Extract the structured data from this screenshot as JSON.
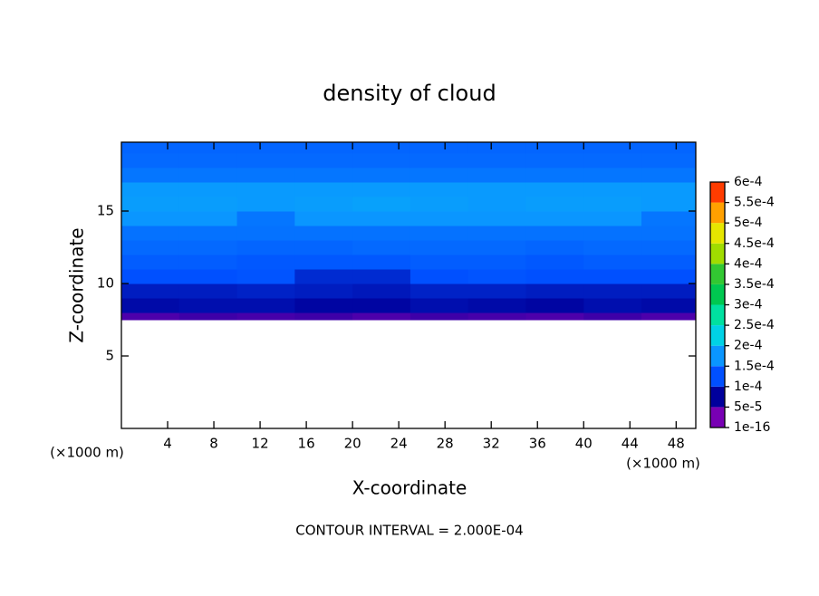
{
  "chart_data": {
    "type": "contour",
    "title": "density of cloud",
    "x_label": "X-coordinate",
    "y_label": "Z-coordinate",
    "x_unit": "(×1000 m)",
    "y_unit": "(×1000 m)",
    "note": "CONTOUR INTERVAL = 2.000E-04",
    "xlim": [
      0,
      49.7
    ],
    "ylim": [
      0,
      19.75
    ],
    "xticks": [
      4,
      8,
      12,
      16,
      20,
      24,
      28,
      32,
      36,
      40,
      44,
      48
    ],
    "yticks": [
      5,
      10,
      15
    ],
    "x_edges": [
      0,
      5,
      10,
      15,
      20,
      25,
      30,
      35,
      40,
      45,
      49.7
    ],
    "y_edges": [
      7.5,
      8,
      9,
      10,
      11,
      12,
      13,
      14,
      15,
      16,
      17,
      18,
      19,
      19.75
    ],
    "z": [
      [
        3e-05,
        4e-05,
        3.5e-05,
        4e-05,
        3e-05,
        4e-05,
        3.5e-05,
        3e-05,
        4e-05,
        3e-05
      ],
      [
        6e-05,
        6.5e-05,
        6.5e-05,
        5.5e-05,
        5.5e-05,
        6.5e-05,
        6e-05,
        5.5e-05,
        6.5e-05,
        6e-05
      ],
      [
        8e-05,
        8e-05,
        8.5e-05,
        8e-05,
        7.5e-05,
        8.5e-05,
        8.5e-05,
        8e-05,
        8e-05,
        8e-05
      ],
      [
        0.0001,
        0.0001,
        0.000105,
        9.5e-05,
        9.5e-05,
        0.0001,
        0.000105,
        0.0001,
        0.0001,
        0.0001
      ],
      [
        0.000115,
        0.000115,
        0.00011,
        0.00011,
        0.00011,
        0.000115,
        0.000115,
        0.00011,
        0.000115,
        0.000115
      ],
      [
        0.00013,
        0.00013,
        0.000125,
        0.000125,
        0.00013,
        0.00013,
        0.00013,
        0.000125,
        0.00013,
        0.00013
      ],
      [
        0.00014,
        0.00014,
        0.00014,
        0.00014,
        0.00014,
        0.00014,
        0.00014,
        0.00014,
        0.00014,
        0.00014
      ],
      [
        0.00015,
        0.00015,
        0.000145,
        0.00015,
        0.00015,
        0.00015,
        0.00015,
        0.00015,
        0.00015,
        0.000145
      ],
      [
        0.00016,
        0.00016,
        0.000155,
        0.00016,
        0.000165,
        0.00016,
        0.000155,
        0.00016,
        0.00016,
        0.000155
      ],
      [
        0.000155,
        0.000155,
        0.000155,
        0.000155,
        0.000155,
        0.000155,
        0.000155,
        0.000155,
        0.000155,
        0.000155
      ],
      [
        0.000145,
        0.000145,
        0.000145,
        0.000145,
        0.000145,
        0.000145,
        0.000145,
        0.000145,
        0.000145,
        0.000145
      ],
      [
        0.00013,
        0.00013,
        0.00013,
        0.00013,
        0.00013,
        0.00013,
        0.00013,
        0.00013,
        0.00013,
        0.00013
      ],
      [
        0.000125,
        0.000125,
        0.000125,
        0.000125,
        0.000125,
        0.000125,
        0.000125,
        0.000125,
        0.000125,
        0.000125
      ]
    ],
    "colorbar": {
      "levels": [
        {
          "value": 1e-16,
          "label": "1e-16"
        },
        {
          "value": 5e-05,
          "label": "5e-5"
        },
        {
          "value": 0.0001,
          "label": "1e-4"
        },
        {
          "value": 0.00015,
          "label": "1.5e-4"
        },
        {
          "value": 0.0002,
          "label": "2e-4"
        },
        {
          "value": 0.00025,
          "label": "2.5e-4"
        },
        {
          "value": 0.0003,
          "label": "3e-4"
        },
        {
          "value": 0.00035,
          "label": "3.5e-4"
        },
        {
          "value": 0.0004,
          "label": "4e-4"
        },
        {
          "value": 0.00045,
          "label": "4.5e-4"
        },
        {
          "value": 0.0005,
          "label": "5e-4"
        },
        {
          "value": 0.00055,
          "label": "5.5e-4"
        },
        {
          "value": 0.0006,
          "label": "6e-4"
        }
      ],
      "colors": [
        "#7800b4",
        "#00009c",
        "#0050ff",
        "#0a96ff",
        "#00d2e6",
        "#00e0a0",
        "#00c850",
        "#32c832",
        "#a0dc00",
        "#e6e600",
        "#ffa000",
        "#ff3c00",
        "#ff8c8c"
      ]
    }
  }
}
